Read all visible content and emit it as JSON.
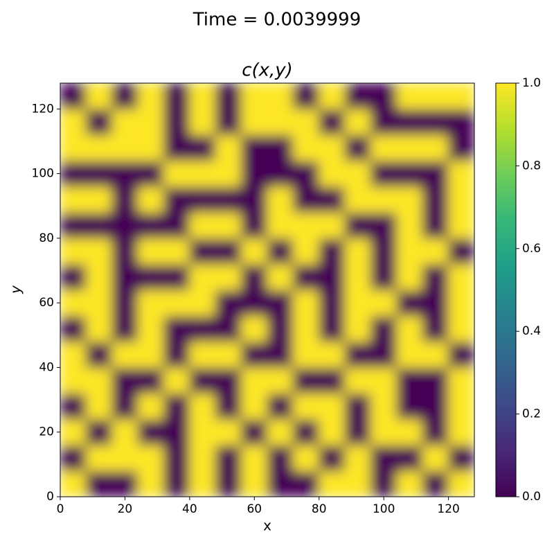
{
  "chart_data": {
    "type": "heatmap",
    "suptitle": "Time = 0.0039999",
    "title": "c(x,y)",
    "xlabel": "x",
    "ylabel": "y",
    "xlim": [
      0,
      128
    ],
    "ylim": [
      0,
      128
    ],
    "xticks": [
      0,
      20,
      40,
      60,
      80,
      100,
      120
    ],
    "yticks": [
      0,
      20,
      40,
      60,
      80,
      100,
      120
    ],
    "cmap": "viridis",
    "clim": [
      0,
      1
    ],
    "colorbar_ticks": [
      {
        "value": 0,
        "label": "0.0"
      },
      {
        "value": 0.2,
        "label": "0.2"
      },
      {
        "value": 0.4,
        "label": "0.4"
      },
      {
        "value": 0.6,
        "label": "0.6"
      },
      {
        "value": 0.8,
        "label": "0.8"
      },
      {
        "value": 1,
        "label": "1.0"
      }
    ],
    "z": [
      [
        1,
        0,
        0,
        1,
        0,
        1,
        0,
        1,
        0,
        0,
        1,
        1,
        0,
        1,
        0,
        1
      ],
      [
        0,
        1,
        1,
        1,
        0,
        1,
        0,
        1,
        0,
        1,
        0,
        1,
        0,
        0,
        1,
        0
      ],
      [
        1,
        0,
        1,
        0,
        0,
        1,
        1,
        0,
        1,
        0,
        1,
        0,
        1,
        1,
        0,
        1
      ],
      [
        0,
        1,
        0,
        1,
        0,
        1,
        0,
        1,
        0,
        1,
        1,
        0,
        1,
        0,
        0,
        1
      ],
      [
        1,
        1,
        0,
        0,
        1,
        0,
        0,
        1,
        1,
        0,
        0,
        1,
        1,
        0,
        0,
        1
      ],
      [
        1,
        0,
        1,
        1,
        0,
        1,
        1,
        0,
        0,
        1,
        1,
        0,
        0,
        1,
        1,
        0
      ],
      [
        0,
        1,
        0,
        1,
        0,
        0,
        0,
        1,
        0,
        1,
        0,
        1,
        0,
        1,
        0,
        1
      ],
      [
        1,
        1,
        0,
        1,
        1,
        1,
        0,
        0,
        0,
        1,
        0,
        1,
        1,
        0,
        0,
        1
      ],
      [
        0,
        1,
        0,
        0,
        0,
        1,
        1,
        0,
        1,
        0,
        0,
        1,
        0,
        1,
        0,
        1
      ],
      [
        1,
        1,
        0,
        1,
        1,
        0,
        0,
        1,
        0,
        1,
        0,
        1,
        0,
        1,
        1,
        0
      ],
      [
        0,
        0,
        0,
        0,
        0,
        1,
        1,
        0,
        1,
        1,
        1,
        0,
        0,
        1,
        0,
        1
      ],
      [
        1,
        1,
        0,
        1,
        0,
        0,
        0,
        0,
        1,
        0,
        0,
        1,
        1,
        1,
        0,
        1
      ],
      [
        0,
        0,
        0,
        0,
        1,
        1,
        1,
        0,
        0,
        0,
        1,
        1,
        0,
        0,
        0,
        1
      ],
      [
        1,
        1,
        1,
        1,
        0,
        0,
        1,
        0,
        0,
        1,
        1,
        0,
        1,
        1,
        1,
        0
      ],
      [
        1,
        0,
        1,
        1,
        0,
        1,
        0,
        1,
        1,
        1,
        0,
        1,
        0,
        0,
        0,
        0
      ],
      [
        0,
        1,
        0,
        1,
        0,
        1,
        0,
        1,
        1,
        0,
        1,
        0,
        0,
        1,
        1,
        1
      ]
    ]
  }
}
